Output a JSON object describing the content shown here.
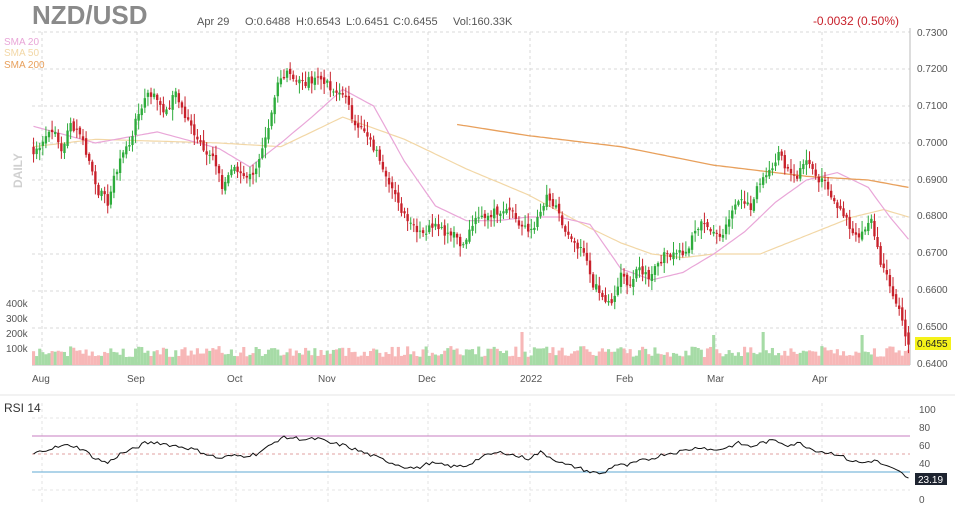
{
  "header": {
    "symbol": "NZD/USD",
    "date": "Apr 29",
    "open": "O:0.6488",
    "high": "H:0.6543",
    "low": "L:0.6451",
    "close": "C:0.6455",
    "volume": "Vol:160.33K",
    "change": "-0.0032 (0.50%)",
    "timeframe": "DAILY"
  },
  "legend": [
    {
      "label": "SMA 20",
      "color": "#e9a6d8"
    },
    {
      "label": "SMA 50",
      "color": "#f2d7a6"
    },
    {
      "label": "SMA 200",
      "color": "#e8a05c"
    }
  ],
  "colors": {
    "up": "#2eac3c",
    "down": "#c8212b",
    "vol_up": "#a6dba6",
    "vol_down": "#f7b7b7",
    "sma20": "#e9a6d8",
    "sma50": "#f2d7a6",
    "sma200": "#e8a05c",
    "change": "#c8212b",
    "last_price_bg": "#f5f21a"
  },
  "chart_data": {
    "type": "candlestick",
    "price_axis": {
      "min": 0.64,
      "max": 0.73,
      "ticks": [
        "0.7300",
        "0.7200",
        "0.7100",
        "0.7000",
        "0.6900",
        "0.6800",
        "0.6700",
        "0.6600",
        "0.6500",
        "0.6400"
      ]
    },
    "volume_axis": {
      "ticks": [
        "400k",
        "300k",
        "200k",
        "100k"
      ]
    },
    "x_axis": {
      "labels": [
        "Aug",
        "Sep",
        "Oct",
        "Nov",
        "Dec",
        "2022",
        "Feb",
        "Mar",
        "Apr"
      ]
    },
    "last_price": "0.6455",
    "rsi": {
      "label": "RSI 14",
      "ticks": [
        "100",
        "80",
        "60",
        "40",
        "20",
        "0"
      ],
      "last": "23.19",
      "overbought": 70,
      "oversold": 30
    },
    "price_anchors": [
      [
        0,
        0.697
      ],
      [
        3,
        0.701
      ],
      [
        6,
        0.704
      ],
      [
        9,
        0.698
      ],
      [
        12,
        0.705
      ],
      [
        15,
        0.703
      ],
      [
        18,
        0.695
      ],
      [
        21,
        0.687
      ],
      [
        24,
        0.684
      ],
      [
        28,
        0.696
      ],
      [
        31,
        0.7
      ],
      [
        34,
        0.708
      ],
      [
        37,
        0.714
      ],
      [
        40,
        0.712
      ],
      [
        43,
        0.708
      ],
      [
        46,
        0.714
      ],
      [
        49,
        0.707
      ],
      [
        52,
        0.703
      ],
      [
        55,
        0.699
      ],
      [
        58,
        0.696
      ],
      [
        61,
        0.688
      ],
      [
        64,
        0.693
      ],
      [
        67,
        0.692
      ],
      [
        70,
        0.691
      ],
      [
        73,
        0.695
      ],
      [
        76,
        0.703
      ],
      [
        79,
        0.716
      ],
      [
        82,
        0.72
      ],
      [
        85,
        0.717
      ],
      [
        88,
        0.716
      ],
      [
        91,
        0.718
      ],
      [
        94,
        0.717
      ],
      [
        97,
        0.713
      ],
      [
        100,
        0.714
      ],
      [
        103,
        0.707
      ],
      [
        106,
        0.704
      ],
      [
        109,
        0.7
      ],
      [
        112,
        0.696
      ],
      [
        115,
        0.69
      ],
      [
        118,
        0.683
      ],
      [
        121,
        0.68
      ],
      [
        124,
        0.677
      ],
      [
        127,
        0.676
      ],
      [
        130,
        0.679
      ],
      [
        133,
        0.676
      ],
      [
        136,
        0.676
      ],
      [
        139,
        0.672
      ],
      [
        142,
        0.678
      ],
      [
        145,
        0.68
      ],
      [
        148,
        0.681
      ],
      [
        151,
        0.682
      ],
      [
        154,
        0.683
      ],
      [
        157,
        0.678
      ],
      [
        160,
        0.676
      ],
      [
        163,
        0.679
      ],
      [
        166,
        0.685
      ],
      [
        169,
        0.682
      ],
      [
        172,
        0.676
      ],
      [
        175,
        0.672
      ],
      [
        178,
        0.67
      ],
      [
        181,
        0.662
      ],
      [
        184,
        0.658
      ],
      [
        187,
        0.656
      ],
      [
        190,
        0.664
      ],
      [
        193,
        0.662
      ],
      [
        196,
        0.666
      ],
      [
        199,
        0.664
      ],
      [
        202,
        0.668
      ],
      [
        205,
        0.67
      ],
      [
        208,
        0.671
      ],
      [
        211,
        0.67
      ],
      [
        214,
        0.676
      ],
      [
        217,
        0.679
      ],
      [
        220,
        0.675
      ],
      [
        223,
        0.676
      ],
      [
        226,
        0.682
      ],
      [
        229,
        0.686
      ],
      [
        232,
        0.682
      ],
      [
        235,
        0.69
      ],
      [
        238,
        0.693
      ],
      [
        241,
        0.697
      ],
      [
        244,
        0.693
      ],
      [
        247,
        0.691
      ],
      [
        250,
        0.696
      ],
      [
        253,
        0.69
      ],
      [
        256,
        0.689
      ],
      [
        259,
        0.685
      ],
      [
        262,
        0.68
      ],
      [
        265,
        0.676
      ],
      [
        268,
        0.675
      ],
      [
        271,
        0.679
      ],
      [
        274,
        0.668
      ],
      [
        277,
        0.661
      ],
      [
        280,
        0.655
      ],
      [
        283,
        0.6455
      ]
    ],
    "rsi_anchors": [
      [
        0,
        50
      ],
      [
        4,
        55
      ],
      [
        8,
        58
      ],
      [
        12,
        60
      ],
      [
        16,
        55
      ],
      [
        20,
        45
      ],
      [
        24,
        40
      ],
      [
        28,
        50
      ],
      [
        32,
        55
      ],
      [
        36,
        62
      ],
      [
        40,
        63
      ],
      [
        44,
        60
      ],
      [
        48,
        58
      ],
      [
        52,
        55
      ],
      [
        56,
        50
      ],
      [
        60,
        45
      ],
      [
        64,
        48
      ],
      [
        68,
        48
      ],
      [
        72,
        50
      ],
      [
        76,
        58
      ],
      [
        80,
        68
      ],
      [
        84,
        68
      ],
      [
        88,
        66
      ],
      [
        92,
        67
      ],
      [
        96,
        62
      ],
      [
        100,
        60
      ],
      [
        104,
        55
      ],
      [
        108,
        50
      ],
      [
        112,
        45
      ],
      [
        116,
        40
      ],
      [
        120,
        36
      ],
      [
        124,
        34
      ],
      [
        128,
        40
      ],
      [
        132,
        38
      ],
      [
        136,
        36
      ],
      [
        140,
        37
      ],
      [
        144,
        45
      ],
      [
        148,
        50
      ],
      [
        152,
        52
      ],
      [
        156,
        48
      ],
      [
        160,
        45
      ],
      [
        164,
        52
      ],
      [
        168,
        45
      ],
      [
        172,
        38
      ],
      [
        176,
        35
      ],
      [
        180,
        30
      ],
      [
        184,
        28
      ],
      [
        188,
        38
      ],
      [
        192,
        37
      ],
      [
        196,
        42
      ],
      [
        200,
        45
      ],
      [
        204,
        50
      ],
      [
        208,
        52
      ],
      [
        212,
        55
      ],
      [
        216,
        58
      ],
      [
        220,
        54
      ],
      [
        224,
        57
      ],
      [
        228,
        62
      ],
      [
        232,
        58
      ],
      [
        236,
        63
      ],
      [
        240,
        65
      ],
      [
        244,
        60
      ],
      [
        248,
        62
      ],
      [
        252,
        55
      ],
      [
        256,
        52
      ],
      [
        260,
        50
      ],
      [
        264,
        43
      ],
      [
        268,
        40
      ],
      [
        272,
        43
      ],
      [
        276,
        36
      ],
      [
        280,
        30
      ],
      [
        283,
        23.19
      ]
    ],
    "sma20_anchors": [
      [
        0,
        0.7045
      ],
      [
        20,
        0.7
      ],
      [
        40,
        0.703
      ],
      [
        60,
        0.6985
      ],
      [
        70,
        0.6935
      ],
      [
        80,
        0.7
      ],
      [
        90,
        0.707
      ],
      [
        100,
        0.7145
      ],
      [
        110,
        0.71
      ],
      [
        120,
        0.695
      ],
      [
        130,
        0.683
      ],
      [
        140,
        0.679
      ],
      [
        150,
        0.679
      ],
      [
        160,
        0.68
      ],
      [
        170,
        0.68
      ],
      [
        180,
        0.678
      ],
      [
        190,
        0.666
      ],
      [
        200,
        0.663
      ],
      [
        210,
        0.665
      ],
      [
        220,
        0.67
      ],
      [
        230,
        0.676
      ],
      [
        240,
        0.684
      ],
      [
        250,
        0.69
      ],
      [
        260,
        0.692
      ],
      [
        270,
        0.688
      ],
      [
        277,
        0.68
      ],
      [
        283,
        0.674
      ]
    ],
    "sma50_anchors": [
      [
        0,
        0.699
      ],
      [
        20,
        0.701
      ],
      [
        40,
        0.7005
      ],
      [
        60,
        0.7
      ],
      [
        80,
        0.699
      ],
      [
        100,
        0.707
      ],
      [
        120,
        0.701
      ],
      [
        140,
        0.693
      ],
      [
        160,
        0.686
      ],
      [
        180,
        0.677
      ],
      [
        190,
        0.673
      ],
      [
        200,
        0.67
      ],
      [
        210,
        0.669
      ],
      [
        220,
        0.67
      ],
      [
        235,
        0.67
      ],
      [
        250,
        0.675
      ],
      [
        265,
        0.68
      ],
      [
        275,
        0.682
      ],
      [
        283,
        0.68
      ]
    ],
    "sma200_anchors": [
      [
        137,
        0.705
      ],
      [
        160,
        0.702
      ],
      [
        190,
        0.699
      ],
      [
        220,
        0.694
      ],
      [
        250,
        0.691
      ],
      [
        270,
        0.69
      ],
      [
        283,
        0.688
      ]
    ]
  }
}
